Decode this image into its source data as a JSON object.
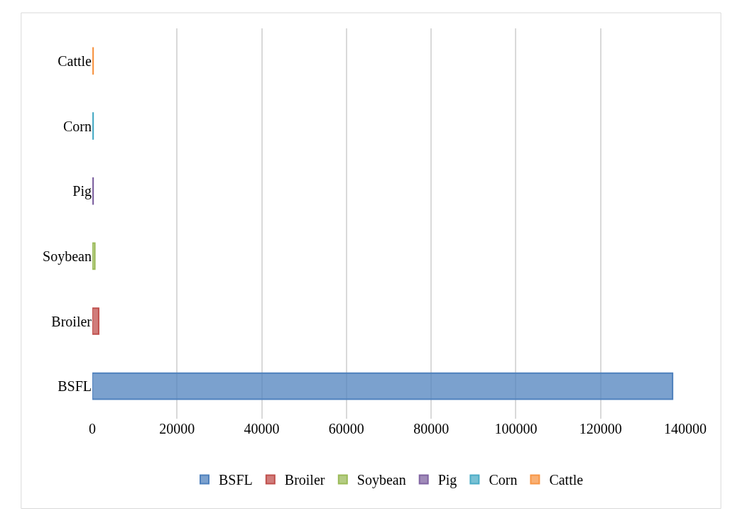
{
  "chart_data": {
    "type": "bar",
    "orientation": "horizontal",
    "categories": [
      "Cattle",
      "Corn",
      "Pig",
      "Soybean",
      "Broiler",
      "BSFL"
    ],
    "series": [
      {
        "name": "BSFL",
        "color": "#4f81bd",
        "values": [
          null,
          null,
          null,
          null,
          null,
          137000
        ]
      },
      {
        "name": "Broiler",
        "color": "#c0504d",
        "values": [
          null,
          null,
          null,
          null,
          1500,
          null
        ]
      },
      {
        "name": "Soybean",
        "color": "#9bbb59",
        "values": [
          null,
          null,
          null,
          600,
          null,
          null
        ]
      },
      {
        "name": "Pig",
        "color": "#8064a2",
        "values": [
          null,
          null,
          200,
          null,
          null,
          null
        ]
      },
      {
        "name": "Corn",
        "color": "#4bacc6",
        "values": [
          null,
          200,
          null,
          null,
          null,
          null
        ]
      },
      {
        "name": "Cattle",
        "color": "#f79646",
        "values": [
          200,
          null,
          null,
          null,
          null,
          null
        ]
      }
    ],
    "xlim": [
      0,
      140000
    ],
    "xticks": [
      0,
      20000,
      40000,
      60000,
      80000,
      100000,
      120000,
      140000
    ],
    "grid": "x",
    "legend": "bottom"
  }
}
